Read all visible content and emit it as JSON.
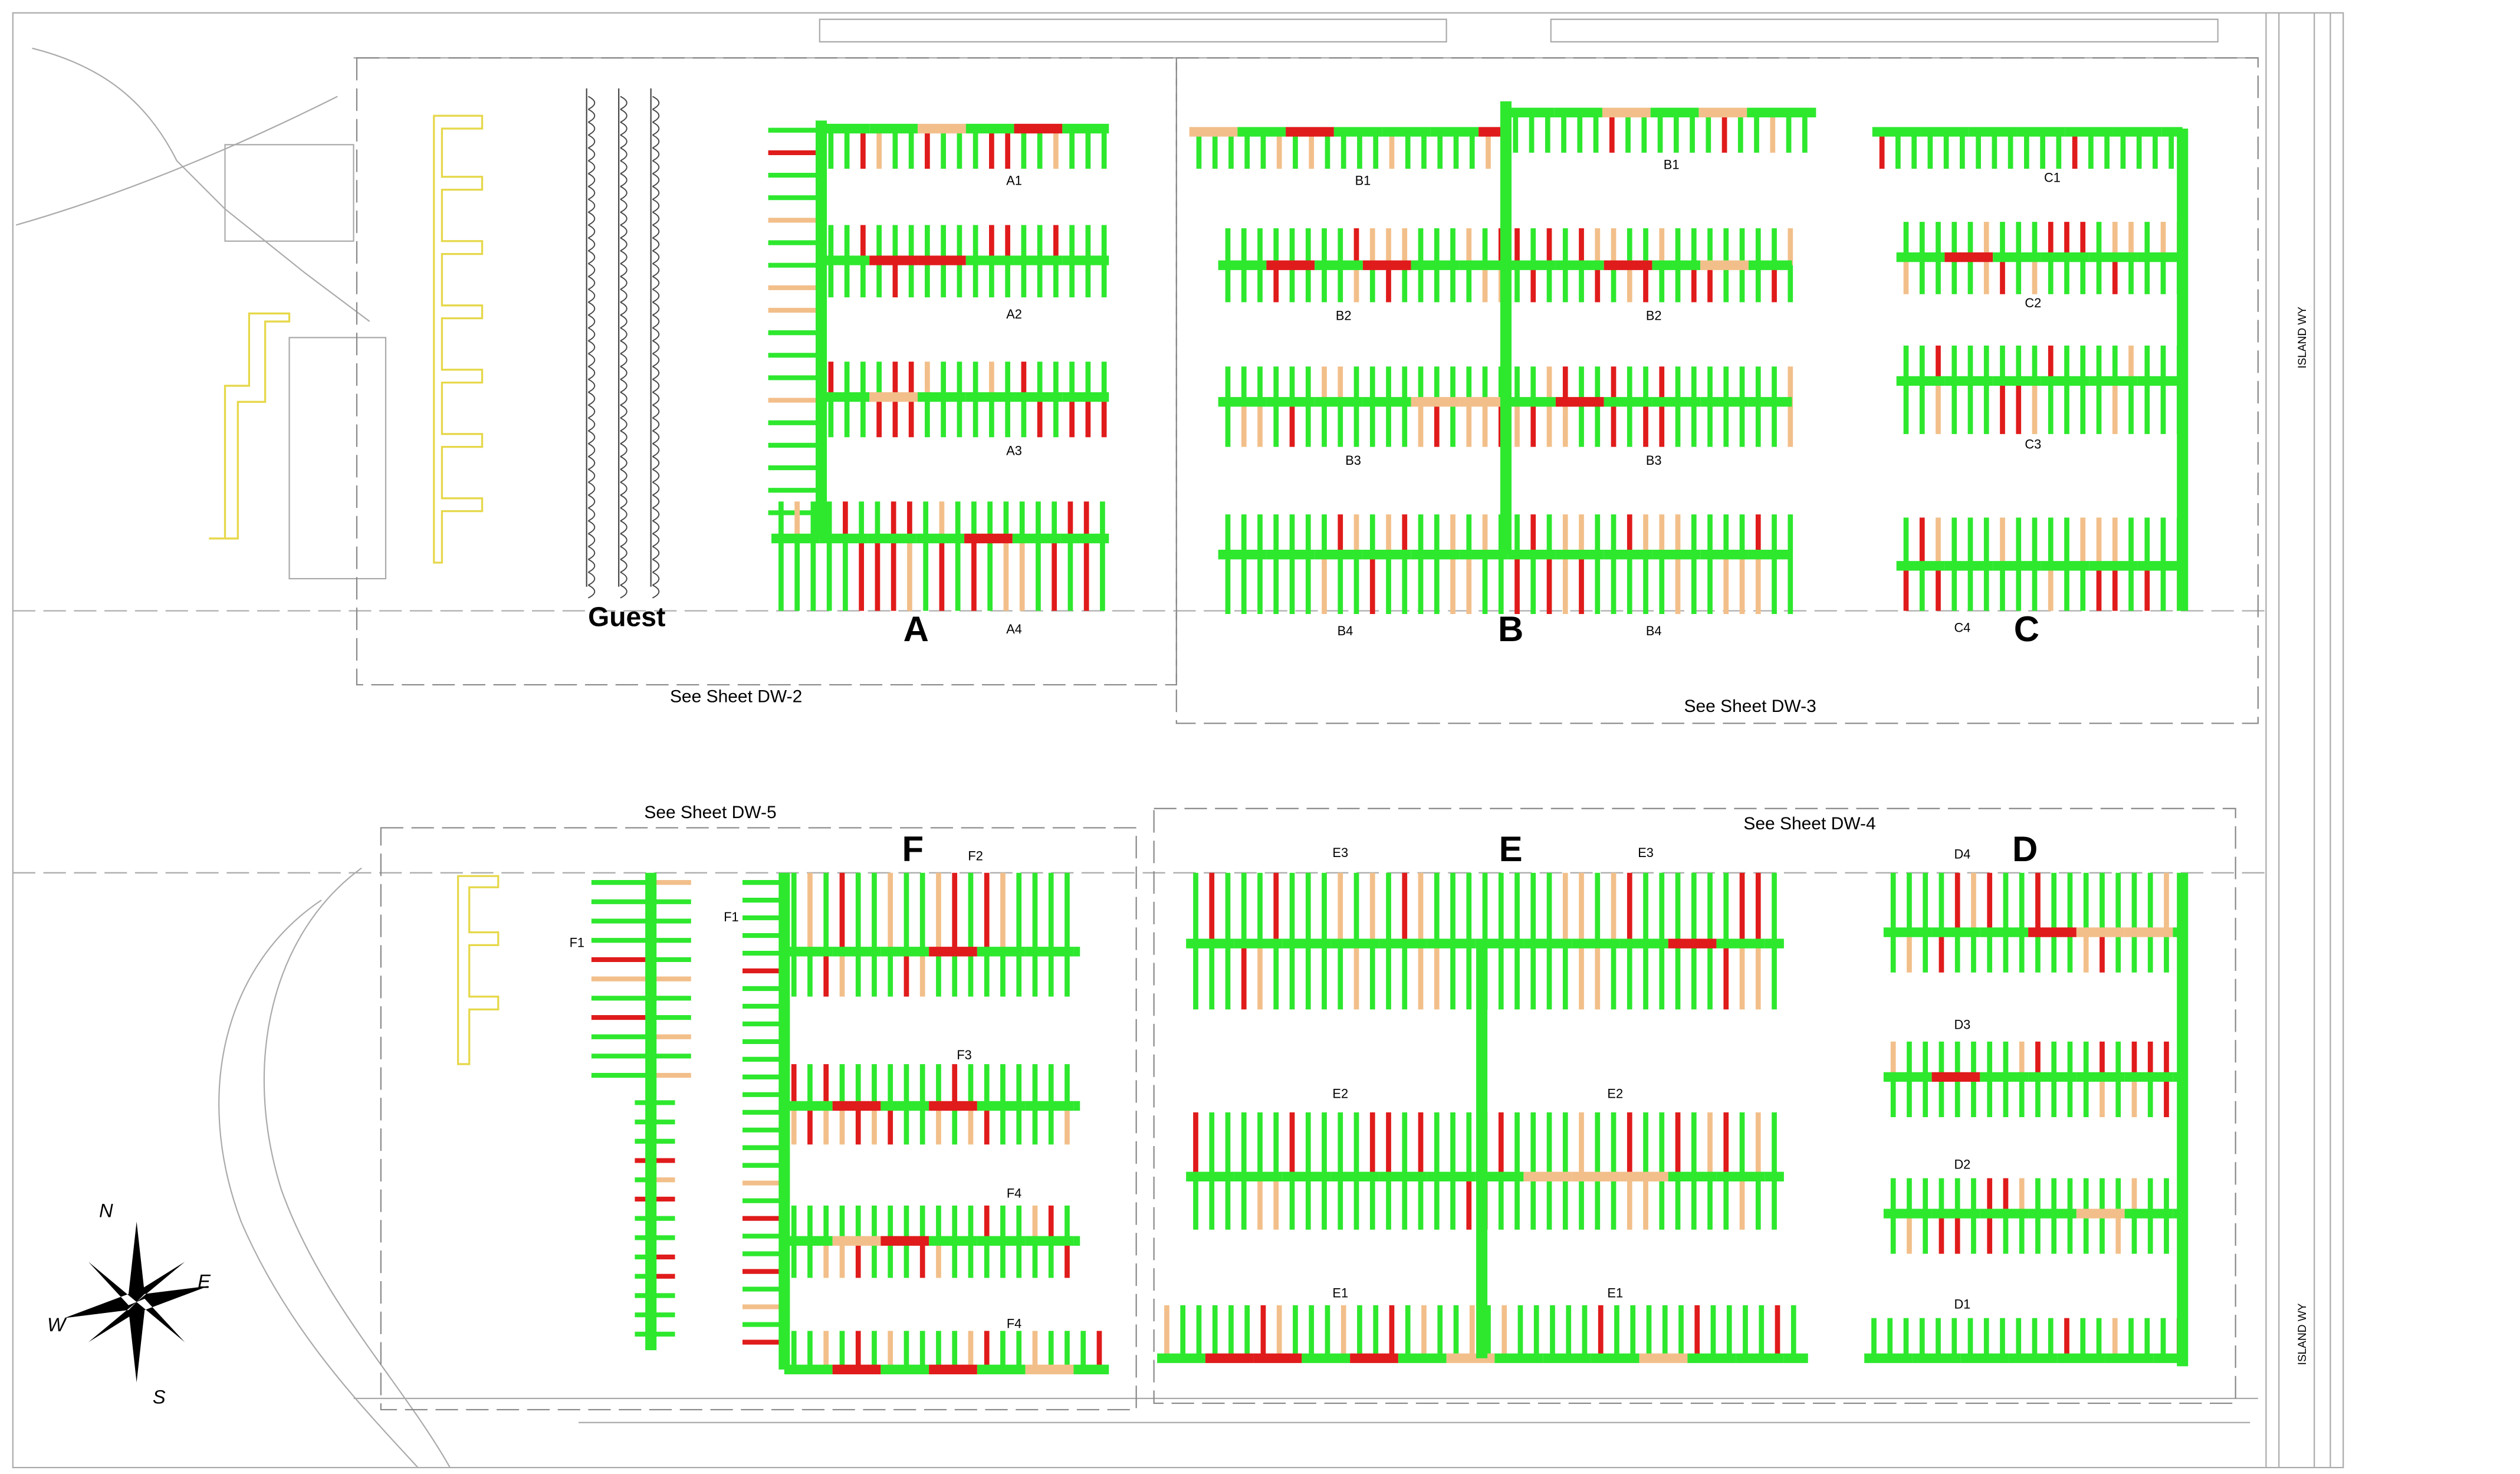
{
  "guest_label": "Guest",
  "section_letters": [
    "A",
    "B",
    "C",
    "D",
    "E",
    "F"
  ],
  "dock_labels": [
    "A1",
    "A2",
    "A3",
    "A4",
    "B1",
    "B1",
    "B2",
    "B2",
    "B3",
    "B3",
    "B4",
    "B4",
    "C1",
    "C2",
    "C3",
    "C4",
    "D4",
    "D3",
    "D2",
    "D1",
    "E3",
    "E3",
    "E2",
    "E2",
    "E1",
    "E1",
    "F2",
    "F1",
    "F1",
    "F3",
    "F4",
    "F4"
  ],
  "sheet_refs": [
    "See Sheet DW-2",
    "See Sheet DW-3",
    "See Sheet DW-5",
    "See Sheet DW-4"
  ],
  "compass": {
    "north": "N",
    "east": "E",
    "south": "S",
    "west": "W"
  },
  "street_labels": [
    "ISLAND WY",
    "ISLAND WY"
  ]
}
